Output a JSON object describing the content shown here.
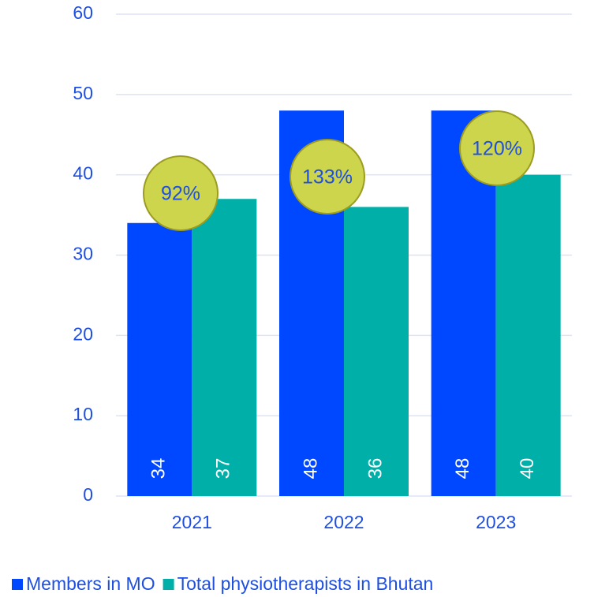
{
  "chart_data": {
    "type": "bar",
    "categories": [
      "2021",
      "2022",
      "2023"
    ],
    "series": [
      {
        "name": "Members in MO",
        "color": "#0048ff",
        "values": [
          34,
          48,
          48
        ]
      },
      {
        "name": "Total physiotherapists in Bhutan",
        "color": "#00b0a8",
        "values": [
          37,
          36,
          40
        ]
      }
    ],
    "annotations": [
      "92%",
      "133%",
      "120%"
    ],
    "ylim": [
      0,
      60
    ],
    "yticks": [
      0,
      10,
      20,
      30,
      40,
      50,
      60
    ],
    "grid": true,
    "legend": "bottom"
  }
}
